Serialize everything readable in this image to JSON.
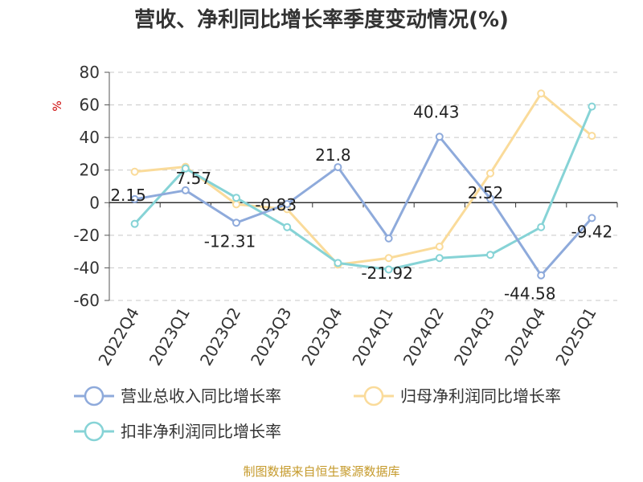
{
  "chart_data": {
    "type": "line",
    "title": "营收、净利同比增长率季度变动情况(%)",
    "ylabel": "%",
    "categories": [
      "2022Q4",
      "2023Q1",
      "2023Q2",
      "2023Q3",
      "2023Q4",
      "2024Q1",
      "2024Q2",
      "2024Q3",
      "2024Q4",
      "2025Q1"
    ],
    "ylim": [
      -60,
      80
    ],
    "yticks": [
      80,
      60,
      40,
      20,
      0,
      -20,
      -40,
      -60
    ],
    "grid": true,
    "legend_position": "bottom",
    "series": [
      {
        "name": "营业总收入同比增长率",
        "color": "#8eaadb",
        "values": [
          2.15,
          7.57,
          -12.31,
          -0.83,
          21.8,
          -21.92,
          40.43,
          2.52,
          -44.58,
          -9.42
        ],
        "labels": [
          "2.15",
          "7.57",
          "-12.31",
          "-0.83",
          "21.8",
          "-21.92",
          "40.43",
          "2.52",
          "-44.58",
          "-9.42"
        ]
      },
      {
        "name": "归母净利润同比增长率",
        "color": "#fadb9a",
        "values": [
          19,
          22,
          -1,
          -4,
          -38,
          -34,
          -27,
          18,
          67,
          41
        ]
      },
      {
        "name": "扣非净利润同比增长率",
        "color": "#86d3d6",
        "values": [
          -13,
          21,
          3,
          -15,
          -37,
          -41,
          -34,
          -32,
          -15,
          59
        ]
      }
    ]
  },
  "source": "制图数据来自恒生聚源数据库"
}
